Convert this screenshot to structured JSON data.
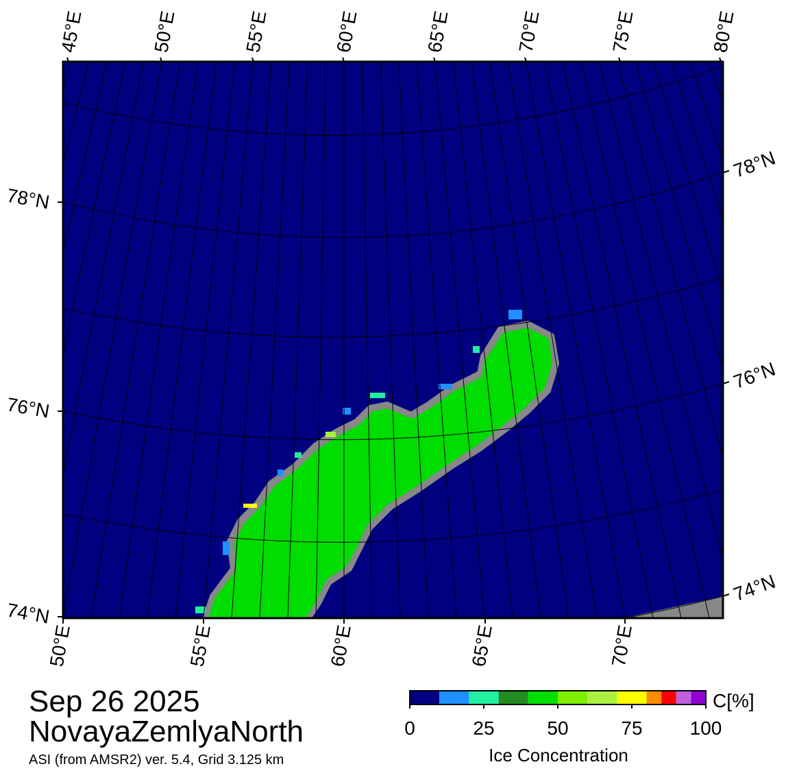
{
  "map": {
    "top_labels": [
      "45°E",
      "50°E",
      "55°E",
      "60°E",
      "65°E",
      "70°E",
      "75°E",
      "80°E"
    ],
    "bottom_labels": [
      "50°E",
      "55°E",
      "60°E",
      "65°E",
      "70°E"
    ],
    "left_labels": [
      "78°N",
      "76°N",
      "74°N"
    ],
    "right_labels": [
      "78°N",
      "76°N",
      "74°N"
    ]
  },
  "date": "Sep 26 2025",
  "region": "NovayaZemlyaNorth",
  "source": "ASI (from AMSR2) ver. 5.4,  Grid 3.125 km",
  "colorbar": {
    "unit": "C[%]",
    "label": "Ice Concentration",
    "range": [
      0,
      100
    ],
    "ticks": [
      0,
      25,
      50,
      75,
      100
    ],
    "bins": [
      0,
      10,
      20,
      30,
      40,
      50,
      60,
      70,
      80,
      85,
      90,
      95,
      100
    ],
    "colors": [
      "#000080",
      "#1e90ff",
      "#22eea0",
      "#228b22",
      "#00dd00",
      "#7fee00",
      "#aaf040",
      "#ffff00",
      "#ff8c00",
      "#ff0000",
      "#c060e0",
      "#9400d3"
    ]
  }
}
